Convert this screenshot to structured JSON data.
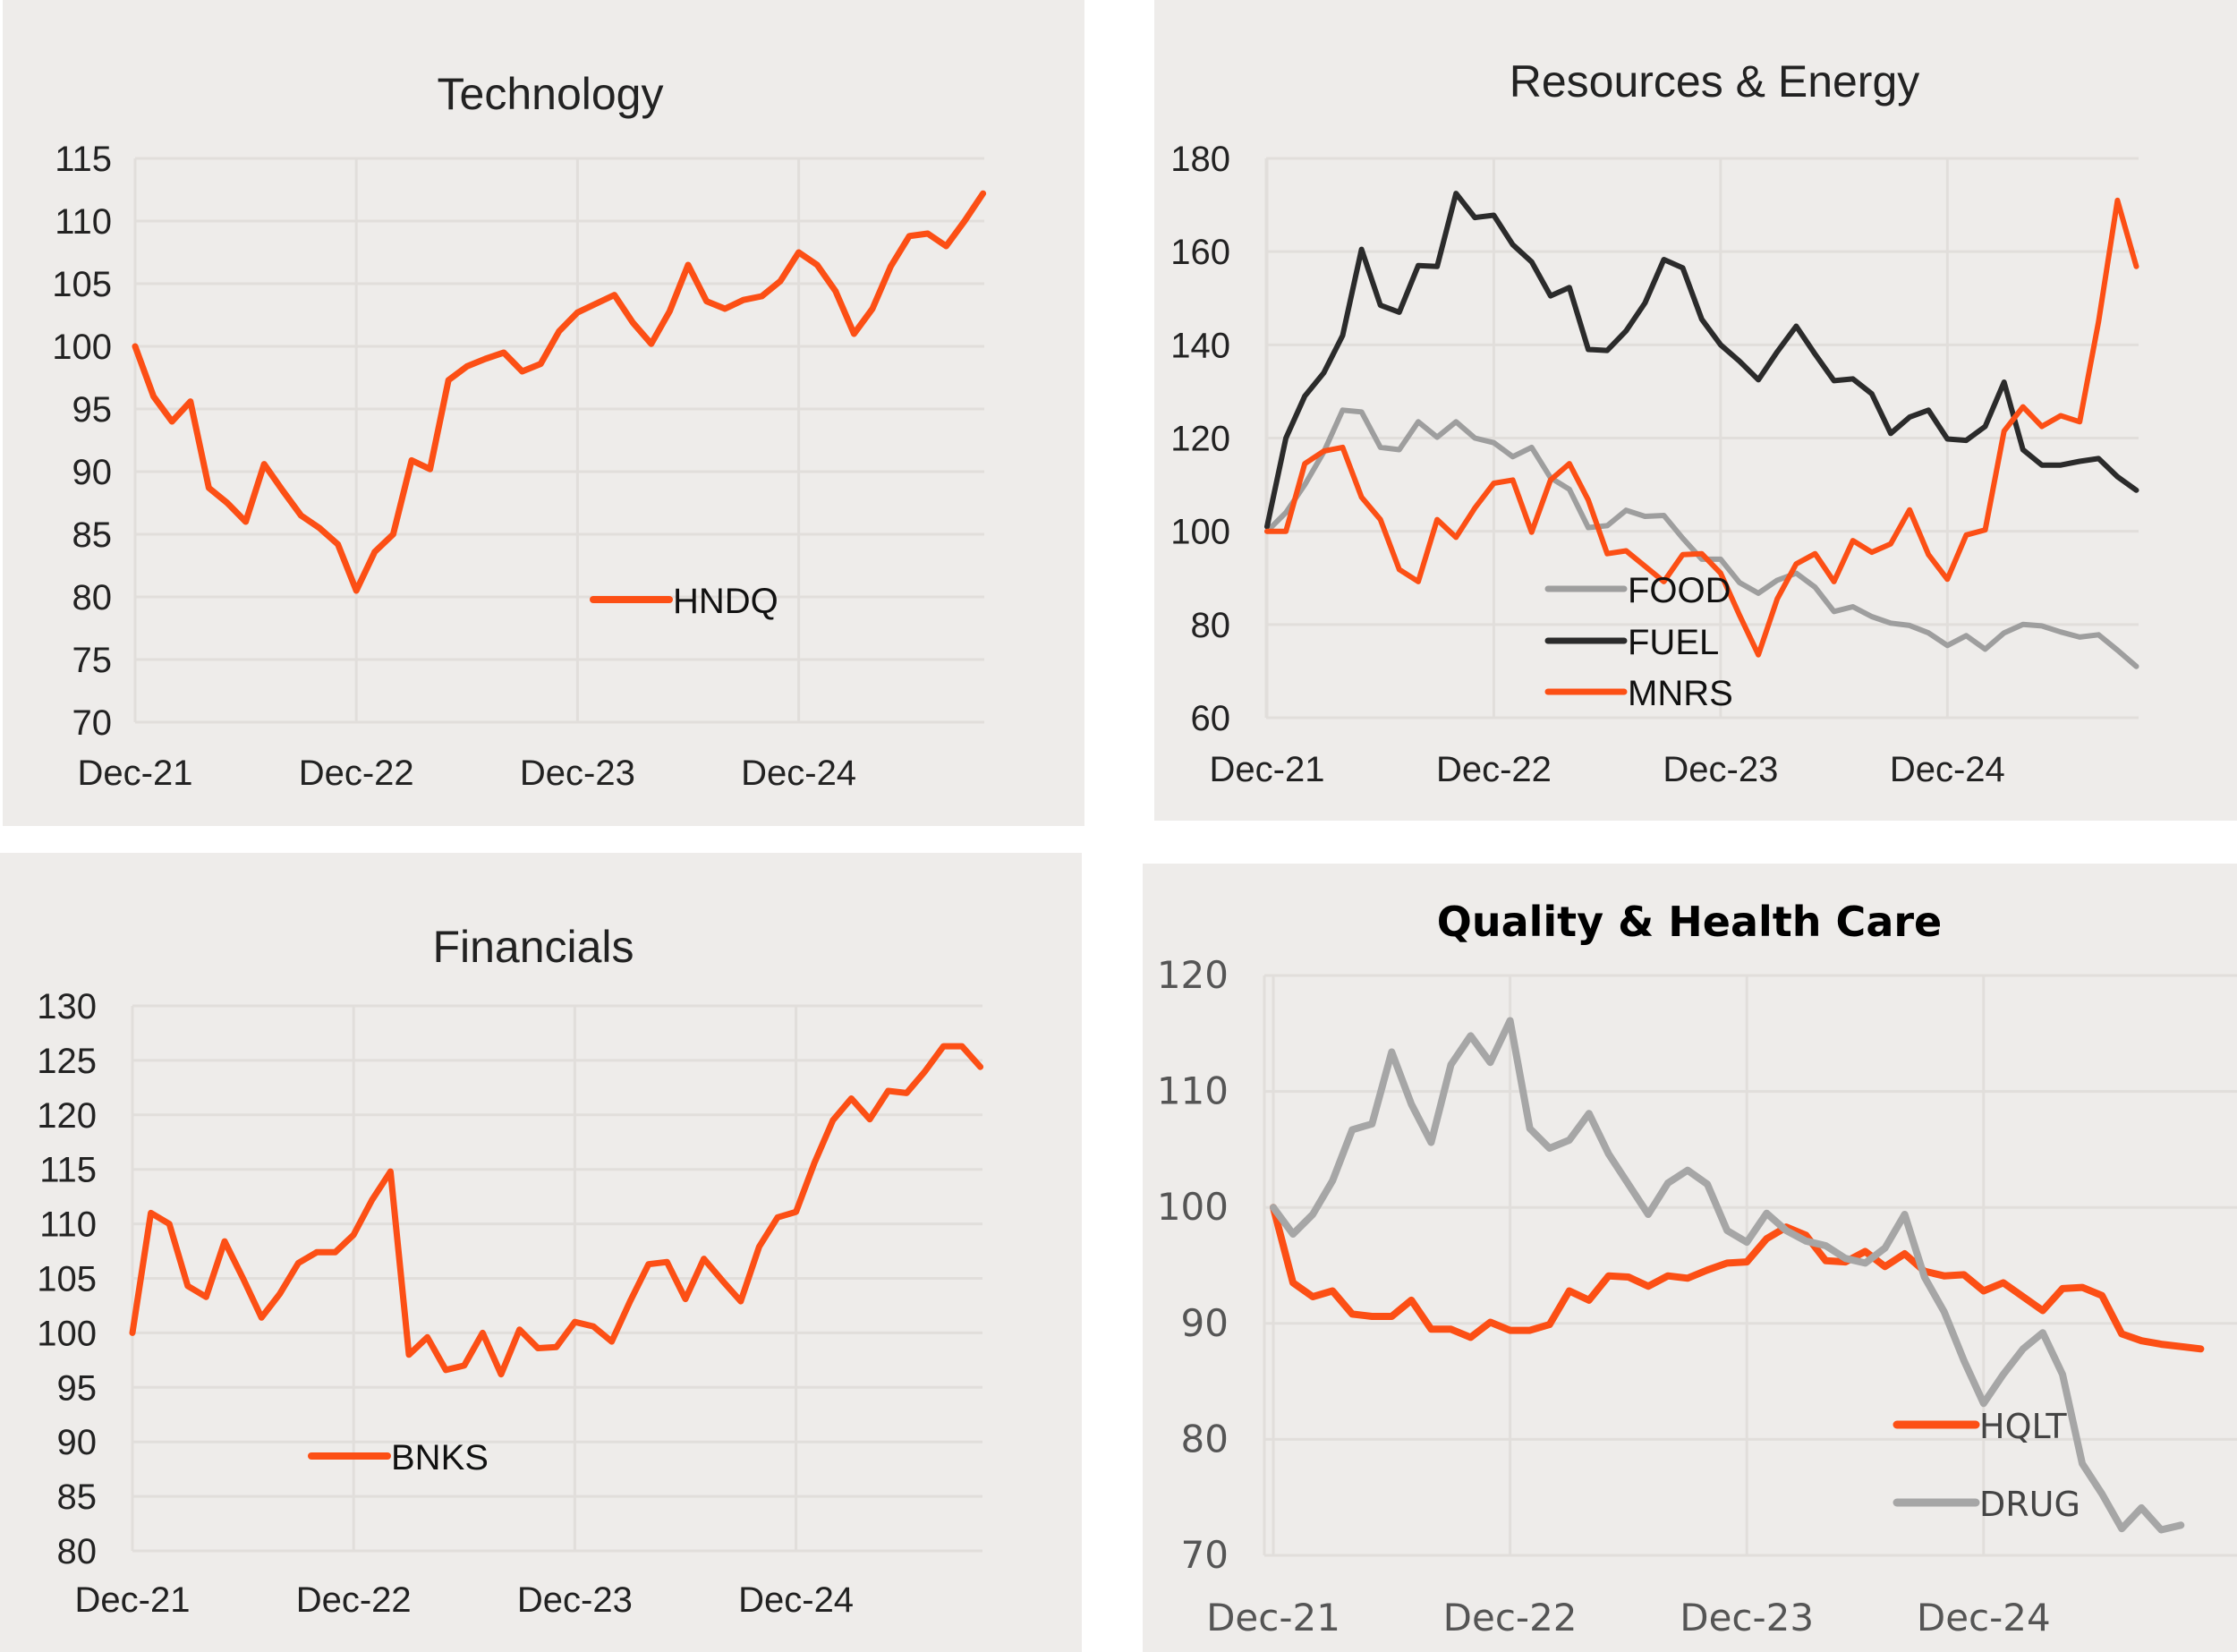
{
  "chart_data": [
    {
      "id": "technology",
      "type": "line",
      "title": "Technology",
      "xlabel": "",
      "ylabel": "",
      "x_ticks": [
        "Dec-21",
        "Dec-22",
        "Dec-23",
        "Dec-24"
      ],
      "x_start": "Dec-21",
      "x_frequency": "monthly",
      "ylim": [
        70,
        115
      ],
      "y_ticks": [
        70,
        75,
        80,
        85,
        90,
        95,
        100,
        105,
        110,
        115
      ],
      "grid": true,
      "legend_position": "lower-center",
      "series": [
        {
          "name": "HNDQ",
          "color": "#fc4f15",
          "values": [
            100,
            96,
            94,
            95.6,
            88.7,
            87.5,
            86,
            90.6,
            88.5,
            86.5,
            85.5,
            84.2,
            80.5,
            83.6,
            85,
            90.9,
            90.2,
            97.3,
            98.4,
            99,
            99.5,
            98,
            98.6,
            101.2,
            102.7,
            103.4,
            104.1,
            101.9,
            100.2,
            102.8,
            106.5,
            103.6,
            103,
            103.7,
            104,
            105.2,
            107.5,
            106.5,
            104.4,
            101,
            103,
            106.4,
            108.8,
            109,
            108,
            110,
            112.2
          ]
        }
      ]
    },
    {
      "id": "resources-energy",
      "type": "line",
      "title": "Resources & Energy",
      "xlabel": "",
      "ylabel": "",
      "x_ticks": [
        "Dec-21",
        "Dec-22",
        "Dec-23",
        "Dec-24"
      ],
      "x_start": "Dec-21",
      "x_frequency": "monthly",
      "ylim": [
        60,
        180
      ],
      "y_ticks": [
        60,
        80,
        100,
        120,
        140,
        160,
        180
      ],
      "grid": true,
      "legend_position": "lower-center",
      "series": [
        {
          "name": "FOOD",
          "color": "#9e9e9e",
          "values": [
            100,
            104,
            110,
            117,
            126,
            125.6,
            118,
            117.5,
            123.5,
            120.2,
            123.5,
            120,
            119,
            116,
            118,
            111.5,
            109,
            100.8,
            101.2,
            104.5,
            103.2,
            103.4,
            98.5,
            94,
            94,
            89,
            86.7,
            89.5,
            91,
            88,
            82.8,
            83.8,
            81.7,
            80.3,
            79.8,
            78.2,
            75.5,
            77.6,
            74.7,
            78.2,
            80,
            79.7,
            78.4,
            77.3,
            77.8,
            74.5,
            71
          ]
        },
        {
          "name": "FUEL",
          "color": "#2b2b2b",
          "values": [
            101,
            120,
            129,
            134,
            142,
            160.5,
            148.5,
            147,
            157,
            156.8,
            172.5,
            167.3,
            167.8,
            161.5,
            157.8,
            150.5,
            152.3,
            139,
            138.8,
            143,
            149,
            158.3,
            156.5,
            145.5,
            140,
            136.5,
            132.5,
            138.5,
            144,
            138,
            132.3,
            132.7,
            129.5,
            121,
            124.5,
            126,
            119.8,
            119.5,
            122.5,
            132,
            117.5,
            114.2,
            114.2,
            115,
            115.6,
            111.7,
            108.8
          ]
        },
        {
          "name": "MNRS",
          "color": "#fc4f15",
          "values": [
            100,
            100,
            114.5,
            117.2,
            118,
            107.3,
            102.5,
            91.8,
            89.2,
            102.5,
            98.7,
            105,
            110.3,
            111,
            99.8,
            111,
            114.5,
            106.7,
            95.2,
            95.8,
            92.5,
            89.2,
            95,
            95.2,
            91,
            82,
            73.5,
            85.5,
            93,
            95.2,
            89.2,
            98,
            95.5,
            97.3,
            104.6,
            95,
            89.7,
            99.2,
            100.3,
            121.5,
            126.7,
            122.5,
            124.8,
            123.5,
            145,
            171,
            156.8
          ]
        }
      ]
    },
    {
      "id": "financials",
      "type": "line",
      "title": "Financials",
      "xlabel": "",
      "ylabel": "",
      "x_ticks": [
        "Dec-21",
        "Dec-22",
        "Dec-23",
        "Dec-24"
      ],
      "x_start": "Dec-21",
      "x_frequency": "monthly",
      "ylim": [
        80,
        130
      ],
      "y_ticks": [
        80,
        85,
        90,
        95,
        100,
        105,
        110,
        115,
        120,
        125,
        130
      ],
      "grid": true,
      "legend_position": "lower-left",
      "series": [
        {
          "name": "BNKS",
          "color": "#fc4f15",
          "values": [
            100,
            111,
            110,
            104.3,
            103.3,
            108.4,
            105,
            101.4,
            103.6,
            106.4,
            107.4,
            107.4,
            109,
            112.2,
            114.8,
            98,
            99.6,
            96.6,
            97,
            100,
            96.2,
            100.3,
            98.6,
            98.7,
            101,
            100.6,
            99.2,
            102.9,
            106.3,
            106.5,
            103.1,
            106.8,
            104.8,
            102.9,
            107.9,
            110.6,
            111.1,
            115.6,
            119.5,
            121.5,
            119.6,
            122.2,
            122,
            124,
            126.3,
            126.3,
            124.4
          ]
        }
      ]
    },
    {
      "id": "quality-health-care",
      "type": "line",
      "title": "Quality & Health Care",
      "xlabel": "",
      "ylabel": "",
      "x_ticks": [
        "Dec-21",
        "Dec-22",
        "Dec-23",
        "Dec-24"
      ],
      "x_start": "Dec-21",
      "x_frequency": "monthly",
      "ylim": [
        70,
        120
      ],
      "y_ticks": [
        70,
        80,
        90,
        100,
        110,
        120
      ],
      "grid": true,
      "legend_position": "lower-right",
      "series": [
        {
          "name": "HQLT",
          "color": "#fc4f15",
          "values": [
            100,
            93.5,
            92.3,
            92.8,
            90.8,
            90.6,
            90.6,
            92,
            89.5,
            89.5,
            88.8,
            90.1,
            89.4,
            89.4,
            89.9,
            92.8,
            92,
            94.1,
            94,
            93.2,
            94.1,
            93.9,
            94.6,
            95.2,
            95.3,
            97.3,
            98.3,
            97.6,
            95.4,
            95.3,
            96.2,
            94.9,
            96,
            94.5,
            94.1,
            94.2,
            92.8,
            93.5,
            92.3,
            91.1,
            93,
            93.1,
            92.4,
            89.1,
            88.5,
            88.2,
            88,
            87.8
          ]
        },
        {
          "name": "DRUG",
          "color": "#a6a6a6",
          "values": [
            100,
            97.7,
            99.4,
            102.3,
            106.7,
            107.2,
            113.4,
            108.9,
            105.6,
            112.3,
            114.8,
            112.5,
            116.1,
            106.8,
            105.1,
            105.8,
            108.1,
            104.6,
            102,
            99.4,
            102.1,
            103.2,
            102,
            98,
            97,
            99.5,
            98,
            97.1,
            96.7,
            95.6,
            95.2,
            96.5,
            99.4,
            94,
            91,
            86.8,
            83.1,
            85.6,
            87.8,
            89.2,
            85.6,
            77.9,
            75.3,
            72.3,
            74.1,
            72.2,
            72.6
          ]
        }
      ]
    }
  ]
}
